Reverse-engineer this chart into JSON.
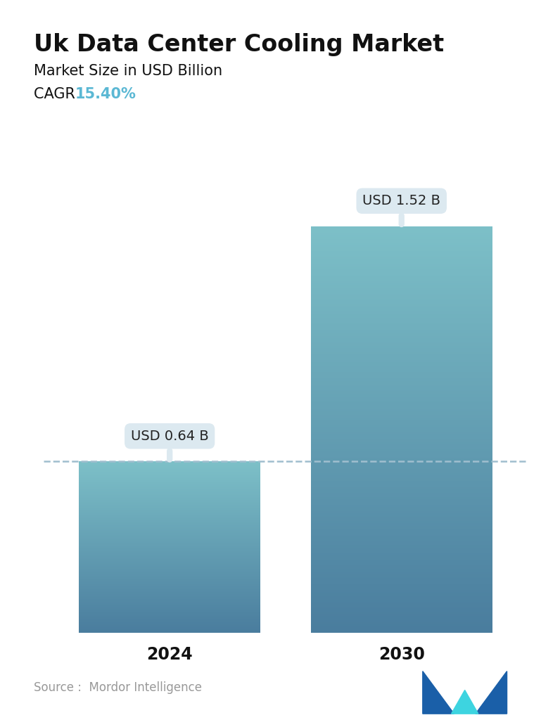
{
  "title": "Uk Data Center Cooling Market",
  "subtitle": "Market Size in USD Billion",
  "cagr_label": "CAGR  ",
  "cagr_value": "15.40%",
  "cagr_color": "#5bb8d4",
  "categories": [
    "2024",
    "2030"
  ],
  "values": [
    0.64,
    1.52
  ],
  "bar_labels": [
    "USD 0.64 B",
    "USD 1.52 B"
  ],
  "bar_top_color": "#7dc0c8",
  "bar_bottom_color": "#4a7d9e",
  "dashed_line_color": "#a0bece",
  "annotation_bg_color": "#dce9f0",
  "source_text": "Source :  Mordor Intelligence",
  "source_color": "#999999",
  "background_color": "#ffffff",
  "title_fontsize": 24,
  "subtitle_fontsize": 15,
  "cagr_fontsize": 15,
  "bar_label_fontsize": 14,
  "xtick_fontsize": 17,
  "source_fontsize": 12,
  "ylim": [
    0,
    1.85
  ],
  "x_positions": [
    0.27,
    0.73
  ],
  "bar_width": 0.36
}
